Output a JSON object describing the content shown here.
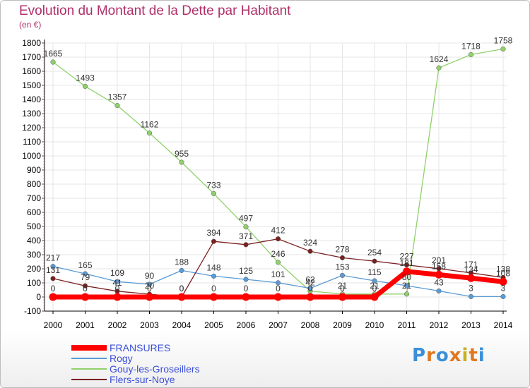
{
  "header": {
    "title": "Evolution du Montant de la Dette par Habitant",
    "subtitle": "(en €)"
  },
  "logo": {
    "text": "Proxiti",
    "colors": [
      "#3a8fd8",
      "#e07820",
      "#3a8fd8",
      "#e07820",
      "#c8b020",
      "#e07820",
      "#3a8fd8"
    ]
  },
  "colors": {
    "title": "#b0306a",
    "axis": "#000000",
    "grid": "#e6e6e6"
  },
  "chart_data": {
    "type": "line",
    "title": "Evolution du Montant de la Dette par Habitant",
    "ylabel": "(en €)",
    "xlabel": "",
    "ylim": [
      -100,
      1800
    ],
    "yticks": [
      -100,
      0,
      100,
      200,
      300,
      400,
      500,
      600,
      700,
      800,
      900,
      1000,
      1100,
      1200,
      1300,
      1400,
      1500,
      1600,
      1700,
      1800
    ],
    "x": [
      "2000",
      "2001",
      "2002",
      "2003",
      "2004",
      "2005",
      "2006",
      "2007",
      "2008",
      "2009",
      "2010",
      "2011",
      "2012",
      "2013",
      "2014"
    ],
    "grid": true,
    "legend_position": "bottom-left",
    "series": [
      {
        "name": "FRANSURES",
        "color": "#ff0000",
        "width": 7,
        "values": [
          0,
          0,
          0,
          0,
          0,
          0,
          0,
          0,
          0,
          0,
          0,
          181,
          158,
          134,
          108
        ],
        "labels": [
          "0",
          "0",
          "0",
          "0",
          "0",
          "0",
          "0",
          "0",
          "0",
          "0",
          "0",
          "181",
          "158",
          "134",
          "108"
        ]
      },
      {
        "name": "Rogy",
        "color": "#5b9bd5",
        "width": 1.3,
        "values": [
          217,
          165,
          109,
          90,
          188,
          148,
          125,
          101,
          62,
          153,
          115,
          80,
          43,
          3,
          3
        ],
        "labels": [
          "217",
          "165",
          "109",
          "90",
          "188",
          "148",
          "125",
          "101",
          "62",
          "153",
          "115",
          "80",
          "43",
          "3",
          "3"
        ]
      },
      {
        "name": "Gouy-les-Groseillers",
        "color": "#8fd16a",
        "width": 1.3,
        "values": [
          1665,
          1493,
          1357,
          1162,
          955,
          733,
          497,
          246,
          42,
          21,
          21,
          21,
          1624,
          1718,
          1758
        ],
        "labels": [
          "1665",
          "1493",
          "1357",
          "1162",
          "955",
          "733",
          "497",
          "246",
          "42",
          "21",
          "21",
          "21",
          "1624",
          "1718",
          "1758"
        ]
      },
      {
        "name": "Flers-sur-Noye",
        "color": "#7a2020",
        "width": 1.3,
        "values": [
          131,
          79,
          41,
          20,
          0,
          394,
          371,
          412,
          324,
          278,
          254,
          227,
          201,
          171,
          138
        ],
        "labels": [
          "131",
          "79",
          "41",
          "20",
          "0",
          "394",
          "371",
          "412",
          "324",
          "278",
          "254",
          "227",
          "201",
          "171",
          "138"
        ]
      }
    ]
  }
}
